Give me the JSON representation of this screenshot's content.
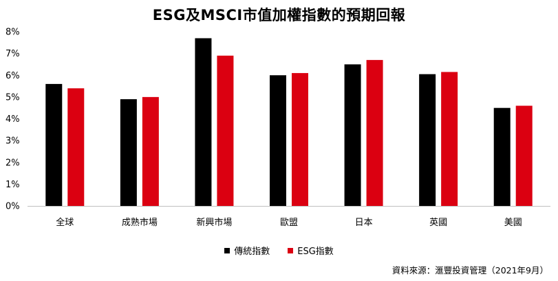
{
  "title": "ESG及MSCI市值加權指數的預期回報",
  "source": "資料來源：滙豐投資管理（2021年9月）",
  "colors": {
    "traditional": "#000000",
    "esg": "#db0011",
    "axis": "#bfbfbf"
  },
  "chart_data": {
    "type": "bar",
    "title": "ESG及MSCI市值加權指數的預期回報",
    "categories": [
      "全球",
      "成熟市場",
      "新興市場",
      "歐盟",
      "日本",
      "英國",
      "美國"
    ],
    "series": [
      {
        "name": "傳統指數",
        "values": [
          5.6,
          4.9,
          7.7,
          6.0,
          6.5,
          6.05,
          4.5
        ]
      },
      {
        "name": "ESG指數",
        "values": [
          5.4,
          5.0,
          6.9,
          6.1,
          6.7,
          6.15,
          4.6
        ]
      }
    ],
    "yticks": [
      "0%",
      "1%",
      "2%",
      "3%",
      "4%",
      "5%",
      "6%",
      "7%",
      "8%"
    ],
    "ylim": [
      0,
      8
    ],
    "grid": false,
    "legend_position": "bottom"
  }
}
